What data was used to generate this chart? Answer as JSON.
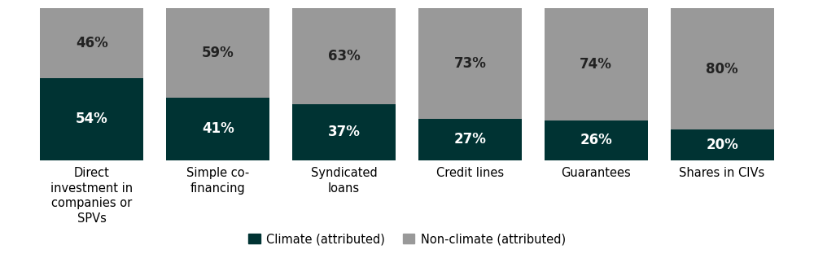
{
  "categories": [
    "Direct\ninvestment in\ncompanies or\nSPVs",
    "Simple co-\nfinancing",
    "Syndicated\nloans",
    "Credit lines",
    "Guarantees",
    "Shares in CIVs"
  ],
  "climate_values": [
    54,
    41,
    37,
    27,
    26,
    20
  ],
  "nonclimate_values": [
    46,
    59,
    63,
    73,
    74,
    80
  ],
  "climate_color": "#003333",
  "nonclimate_color": "#999999",
  "climate_label": "Climate (attributed)",
  "nonclimate_label": "Non-climate (attributed)",
  "bar_width": 0.82,
  "figsize": [
    10.0,
    3.39
  ],
  "dpi": 100,
  "ylim": [
    0,
    100
  ],
  "text_color_white": "#ffffff",
  "text_color_dark": "#222222",
  "label_fontsize": 12,
  "legend_fontsize": 10.5,
  "tick_fontsize": 10.5
}
